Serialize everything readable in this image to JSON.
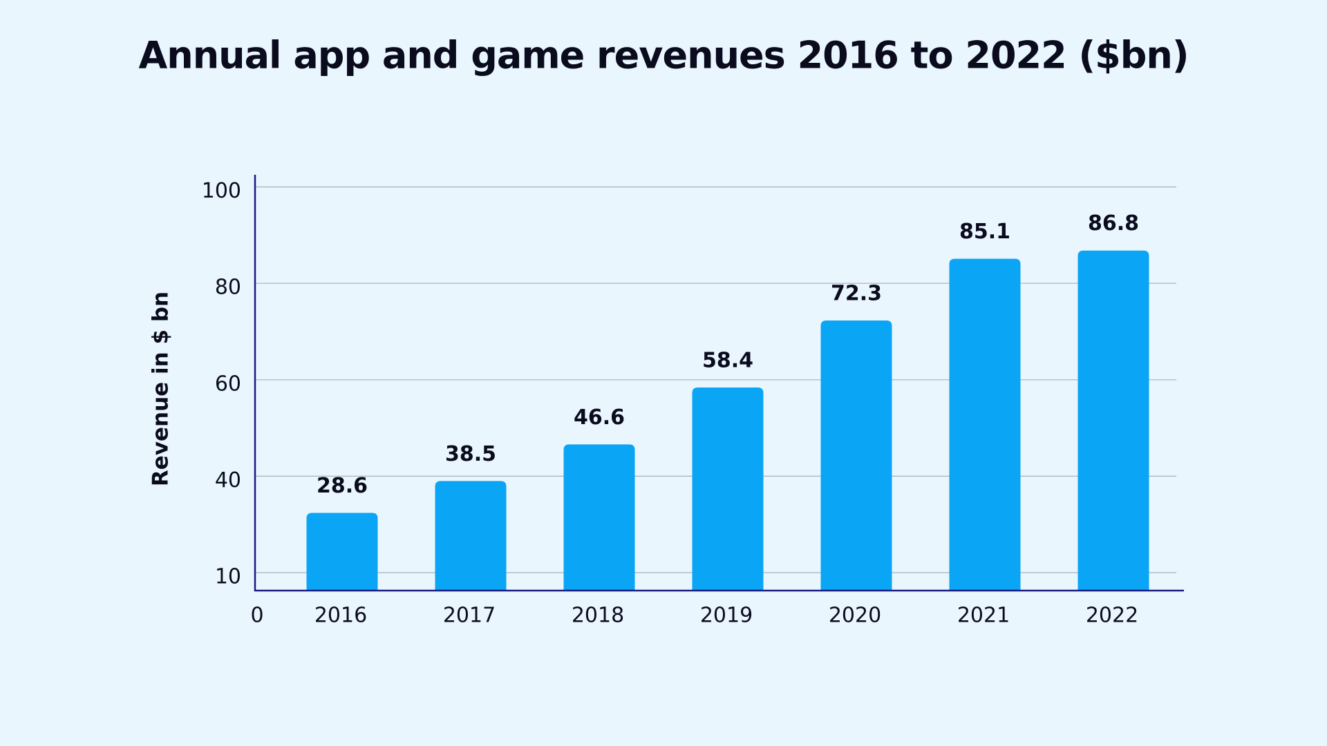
{
  "chart_data": {
    "type": "bar",
    "title": "Annual app and game revenues 2016 to 2022 ($bn)",
    "y_label": "Revenue in $ bn",
    "categories": [
      "2016",
      "2017",
      "2018",
      "2019",
      "2020",
      "2021",
      "2022"
    ],
    "values": [
      28.6,
      38.5,
      46.6,
      58.4,
      72.3,
      85.1,
      86.8
    ],
    "color": "#0aa5f5",
    "ylim": [
      0,
      100
    ],
    "yticks": [
      0,
      10,
      40,
      60,
      80,
      100
    ],
    "grid": true
  }
}
